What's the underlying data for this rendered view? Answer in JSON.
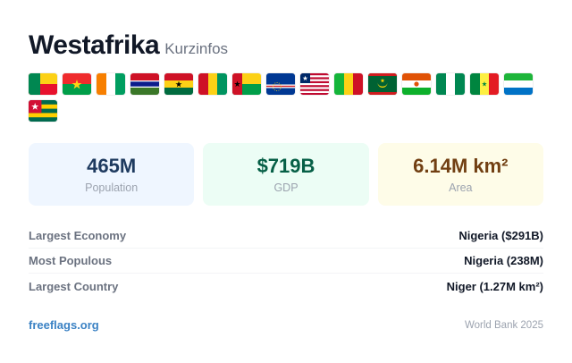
{
  "header": {
    "title": "Westafrika",
    "subtitle": "Kurzinfos"
  },
  "flags": [
    "benin-flag",
    "burkina-faso-flag",
    "cote-divoire-flag",
    "gambia-flag",
    "ghana-flag",
    "guinea-flag",
    "guinea-bissau-flag",
    "cape-verde-flag",
    "liberia-flag",
    "mali-flag",
    "mauritania-flag",
    "niger-flag",
    "nigeria-flag",
    "senegal-flag",
    "sierra-leone-flag",
    "togo-flag"
  ],
  "stats": [
    {
      "value": "465M",
      "label": "Population",
      "bg": "#eff6ff",
      "color": "#1e3a5f"
    },
    {
      "value": "$719B",
      "label": "GDP",
      "bg": "#ecfdf5",
      "color": "#065f46"
    },
    {
      "value": "6.14M km²",
      "label": "Area",
      "bg": "#fefce8",
      "color": "#713f12"
    }
  ],
  "rows": [
    {
      "label": "Largest Economy",
      "value": "Nigeria ($291B)"
    },
    {
      "label": "Most Populous",
      "value": "Nigeria (238M)"
    },
    {
      "label": "Largest Country",
      "value": "Niger (1.27M km²)"
    }
  ],
  "footer": {
    "link": "freeflags.org",
    "source": "World Bank 2025"
  }
}
